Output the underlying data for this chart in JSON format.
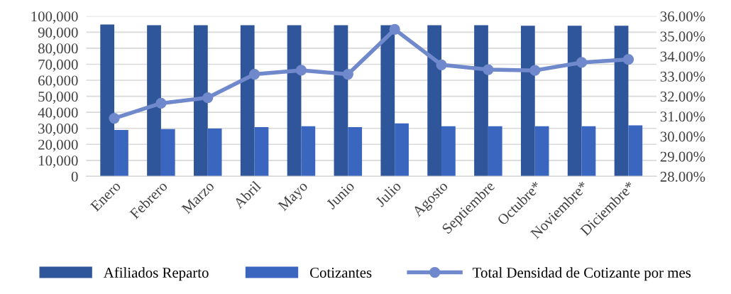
{
  "chart_data": {
    "type": "bar",
    "categories": [
      "Enero",
      "Febrero",
      "Marzo",
      "Abril",
      "Mayo",
      "Junio",
      "Julio",
      "Agosto",
      "Septiembre",
      "Octubre*",
      "Noviembre*",
      "Diciembre*"
    ],
    "series": [
      {
        "name": "Afiliados Reparto",
        "color": "#2f559a",
        "values": [
          94800,
          94400,
          94400,
          94400,
          94400,
          94400,
          94400,
          94400,
          94400,
          94000,
          94000,
          94000
        ]
      },
      {
        "name": "Cotizantes",
        "color": "#3a66bf",
        "values": [
          29000,
          29500,
          29900,
          30800,
          31300,
          30800,
          33100,
          31300,
          31300,
          31300,
          31300,
          31900
        ]
      },
      {
        "name": "Total Densidad de Cotizante por mes",
        "type": "line",
        "axis": "y2",
        "color": "#7089cc",
        "marker": "circle",
        "values": [
          30.9,
          31.65,
          31.93,
          33.1,
          33.3,
          33.1,
          35.34,
          33.57,
          33.33,
          33.29,
          33.69,
          33.84
        ]
      }
    ],
    "ylim": [
      0,
      100000
    ],
    "yticks": [
      {
        "value": 0,
        "label": "0"
      },
      {
        "value": 10000,
        "label": "10,000"
      },
      {
        "value": 20000,
        "label": "20,000"
      },
      {
        "value": 30000,
        "label": "30,000"
      },
      {
        "value": 40000,
        "label": "40,000"
      },
      {
        "value": 50000,
        "label": "50,000"
      },
      {
        "value": 60000,
        "label": "60,000"
      },
      {
        "value": 70000,
        "label": "70,000"
      },
      {
        "value": 80000,
        "label": "80,000"
      },
      {
        "value": 90000,
        "label": "90,000"
      },
      {
        "value": 100000,
        "label": "100,000"
      }
    ],
    "y2lim": [
      28,
      36
    ],
    "y2ticks": [
      {
        "value": 28,
        "label": "28.00%"
      },
      {
        "value": 29,
        "label": "29.00%"
      },
      {
        "value": 30,
        "label": "30.00%"
      },
      {
        "value": 31,
        "label": "31.00%"
      },
      {
        "value": 32,
        "label": "32.00%"
      },
      {
        "value": 33,
        "label": "33.00%"
      },
      {
        "value": 34,
        "label": "34.00%"
      },
      {
        "value": 35,
        "label": "35.00%"
      },
      {
        "value": 36,
        "label": "36.00%"
      }
    ],
    "grid": "y",
    "legend": "bottom"
  }
}
